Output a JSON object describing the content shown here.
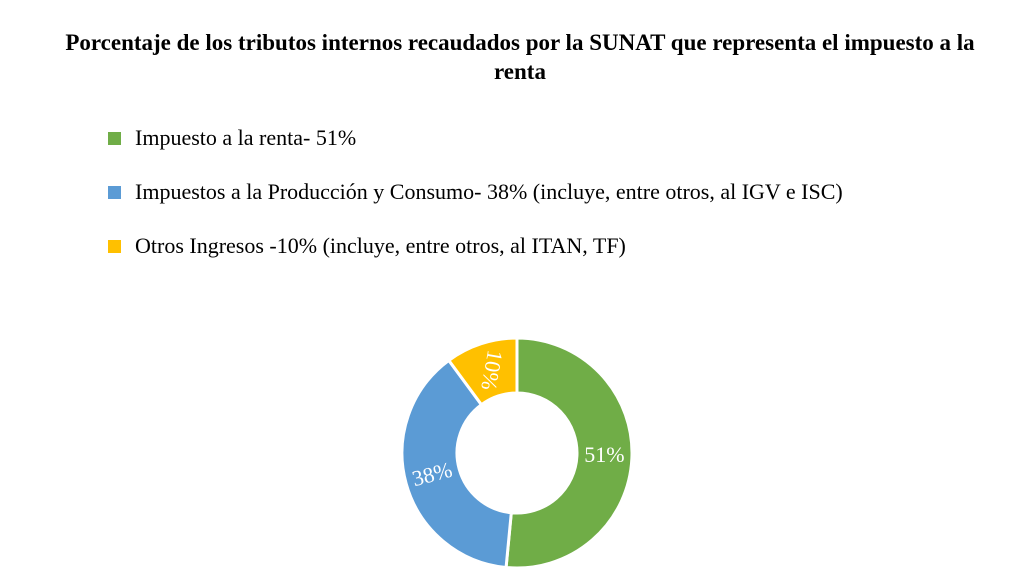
{
  "chart_data": {
    "type": "donut",
    "title": "Porcentaje de los tributos internos recaudados por la SUNAT que representa el impuesto a la renta",
    "categories": [
      "Impuesto a la renta- 51%",
      "Impuestos a la Producción y Consumo- 38% (incluye, entre otros, al IGV e ISC)",
      "Otros Ingresos -10% (incluye, entre otros, al ITAN, TF)"
    ],
    "values": [
      51,
      38,
      10
    ],
    "value_labels": [
      "51%",
      "38%",
      "10%"
    ],
    "colors": [
      "#70ad47",
      "#5b9bd5",
      "#ffc000"
    ],
    "legend": "top"
  }
}
